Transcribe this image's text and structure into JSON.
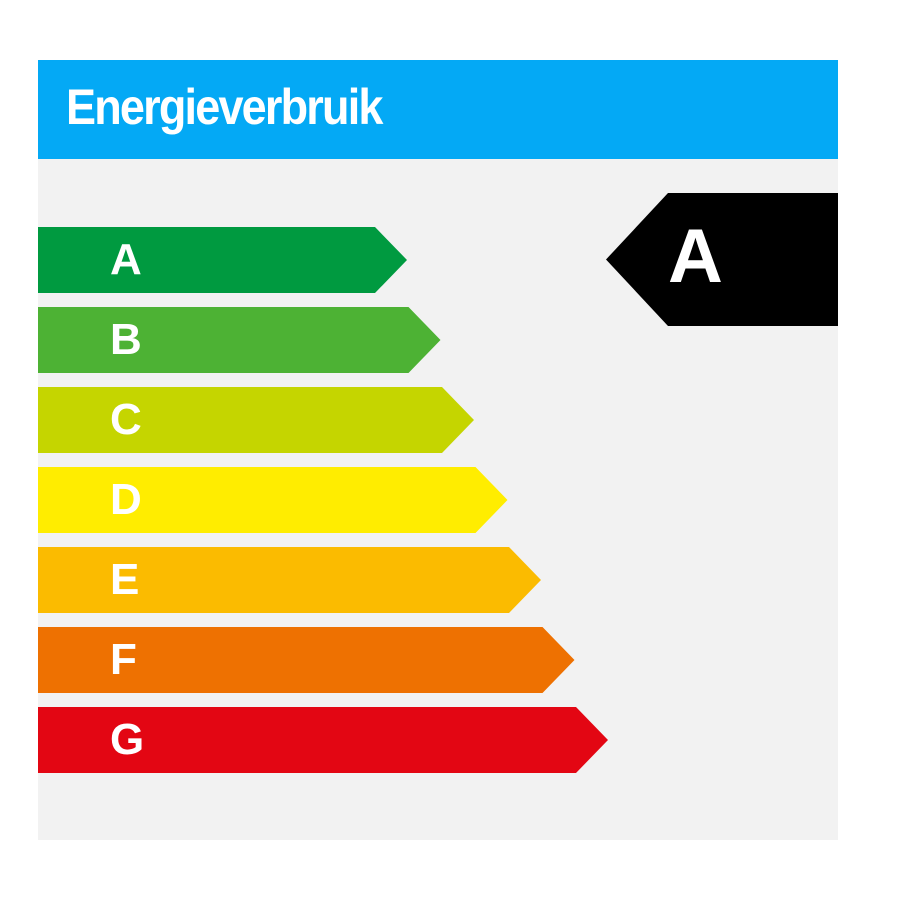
{
  "header": {
    "title": "Energieverbruik",
    "color": "#04a9f5"
  },
  "classes": [
    {
      "label": "A",
      "color": "#009a40"
    },
    {
      "label": "B",
      "color": "#4db234"
    },
    {
      "label": "C",
      "color": "#c5d500"
    },
    {
      "label": "D",
      "color": "#ffed00"
    },
    {
      "label": "E",
      "color": "#fbbb00"
    },
    {
      "label": "F",
      "color": "#ee7101"
    },
    {
      "label": "G",
      "color": "#e30613"
    }
  ],
  "rating": {
    "label": "A",
    "color": "#000000"
  }
}
